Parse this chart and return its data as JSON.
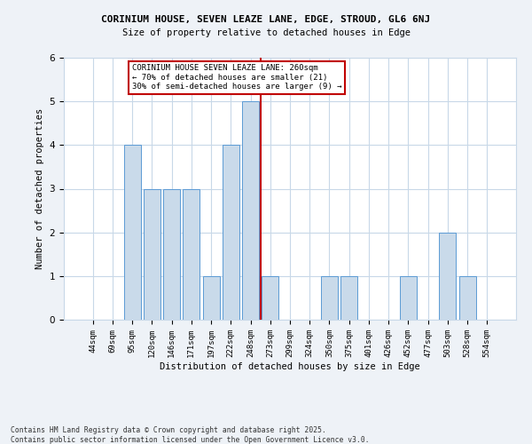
{
  "title1": "CORINIUM HOUSE, SEVEN LEAZE LANE, EDGE, STROUD, GL6 6NJ",
  "title2": "Size of property relative to detached houses in Edge",
  "xlabel": "Distribution of detached houses by size in Edge",
  "ylabel": "Number of detached properties",
  "bar_labels": [
    "44sqm",
    "69sqm",
    "95sqm",
    "120sqm",
    "146sqm",
    "171sqm",
    "197sqm",
    "222sqm",
    "248sqm",
    "273sqm",
    "299sqm",
    "324sqm",
    "350sqm",
    "375sqm",
    "401sqm",
    "426sqm",
    "452sqm",
    "477sqm",
    "503sqm",
    "528sqm",
    "554sqm"
  ],
  "bar_values": [
    0,
    0,
    4,
    3,
    3,
    3,
    1,
    4,
    5,
    1,
    0,
    0,
    1,
    1,
    0,
    0,
    1,
    0,
    2,
    1,
    0
  ],
  "bar_color": "#c9daea",
  "bar_edge_color": "#5b9bd5",
  "vline_color": "#c00000",
  "annotation_text": "CORINIUM HOUSE SEVEN LEAZE LANE: 260sqm\n← 70% of detached houses are smaller (21)\n30% of semi-detached houses are larger (9) →",
  "annotation_box_color": "#ffffff",
  "annotation_box_edge": "#c00000",
  "ylim": [
    0,
    6
  ],
  "yticks": [
    0,
    1,
    2,
    3,
    4,
    5,
    6
  ],
  "footer": "Contains HM Land Registry data © Crown copyright and database right 2025.\nContains public sector information licensed under the Open Government Licence v3.0.",
  "bg_color": "#eef2f7",
  "plot_bg_color": "#ffffff",
  "grid_color": "#c8d8e8"
}
